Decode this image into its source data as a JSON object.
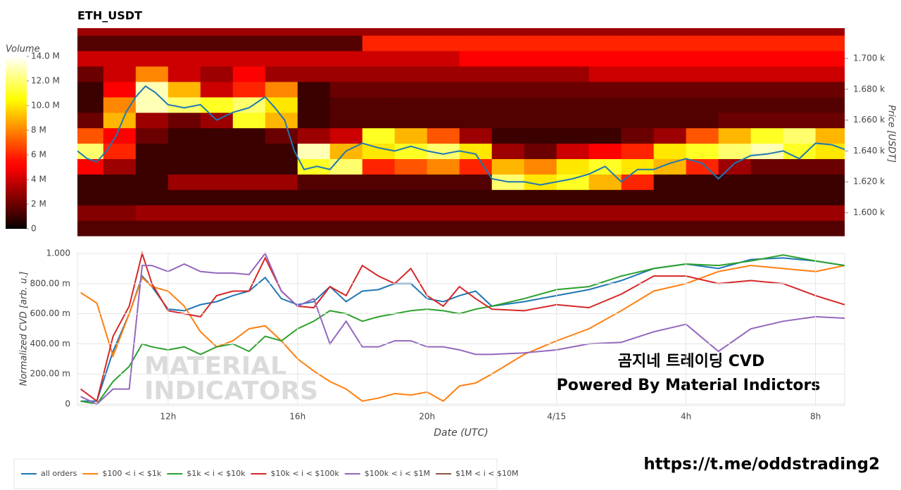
{
  "chart_data": [
    {
      "type": "heatmap",
      "title": "ETH_USDT",
      "colorbar_label": "Volume",
      "ylabel": "Price [USDT]",
      "xlim": [
        9.2,
        32.9
      ],
      "ylim": [
        1583.6,
        1719.6
      ],
      "yticks": [
        {
          "value": 1600,
          "label": "1.600 k"
        },
        {
          "value": 1620,
          "label": "1.620 k"
        },
        {
          "value": 1640,
          "label": "1.640 k"
        },
        {
          "value": 1660,
          "label": "1.660 k"
        },
        {
          "value": 1680,
          "label": "1.680 k"
        },
        {
          "value": 1700,
          "label": "1.700 k"
        }
      ],
      "zlim": [
        0,
        14000000
      ],
      "zticks": [
        0,
        {
          "value": 2000000,
          "label": "2 M"
        },
        {
          "value": 4000000,
          "label": "4 M"
        },
        {
          "value": 6000000,
          "label": "6 M"
        },
        {
          "value": 8000000,
          "label": "8 M"
        },
        {
          "value": 10000000,
          "label": "10.0 M"
        },
        {
          "value": 12000000,
          "label": "12.0 M"
        },
        {
          "value": 14000000,
          "label": "14.0 M"
        }
      ],
      "time_bins": [
        9,
        10,
        11,
        12,
        13,
        14,
        15,
        16,
        17,
        18,
        19,
        20,
        21,
        22,
        23,
        24,
        25,
        26,
        27,
        28,
        29,
        30,
        31,
        32,
        33
      ],
      "price_bins": [
        1585,
        1595,
        1605,
        1615,
        1625,
        1635,
        1645,
        1655,
        1665,
        1675,
        1685,
        1695,
        1705,
        1715,
        1725
      ],
      "z": [
        [
          1500000,
          1500000,
          1500000,
          1500000,
          1500000,
          1500000,
          1500000,
          1500000,
          1500000,
          1500000,
          1500000,
          1500000,
          1500000,
          1500000,
          1500000,
          1500000,
          1500000,
          1500000,
          1500000,
          1500000,
          1500000,
          1500000,
          1500000,
          1500000
        ],
        [
          2500000,
          2500000,
          3000000,
          3000000,
          3000000,
          3000000,
          3000000,
          3000000,
          3000000,
          3000000,
          3000000,
          3000000,
          3000000,
          3000000,
          3000000,
          3000000,
          3000000,
          3000000,
          3000000,
          3000000,
          3000000,
          3000000,
          3000000,
          3000000
        ],
        [
          1000000,
          1000000,
          1000000,
          1000000,
          1000000,
          1000000,
          1000000,
          1000000,
          1000000,
          1000000,
          1000000,
          1000000,
          1000000,
          1000000,
          1000000,
          1000000,
          1000000,
          1000000,
          1000000,
          1000000,
          1000000,
          1000000,
          1000000,
          1000000
        ],
        [
          1000000,
          1000000,
          1000000,
          3000000,
          3000000,
          3000000,
          3000000,
          1500000,
          1500000,
          1500000,
          1500000,
          1500000,
          1500000,
          12000000,
          10000000,
          11000000,
          9000000,
          6000000,
          1000000,
          1000000,
          1000000,
          1000000,
          1000000,
          1000000
        ],
        [
          5000000,
          3000000,
          1000000,
          1000000,
          1000000,
          1000000,
          1000000,
          11000000,
          12000000,
          6000000,
          7000000,
          8000000,
          6000000,
          9000000,
          8000000,
          10000000,
          11000000,
          10000000,
          9000000,
          6000000,
          3000000,
          2000000,
          2000000,
          2000000
        ],
        [
          12000000,
          6000000,
          1000000,
          1000000,
          1000000,
          1000000,
          1000000,
          13000000,
          9000000,
          10000000,
          11000000,
          12000000,
          10000000,
          3000000,
          2000000,
          4000000,
          5000000,
          6000000,
          10000000,
          11000000,
          12000000,
          13000000,
          11000000,
          10000000
        ],
        [
          7000000,
          5000000,
          2000000,
          1000000,
          1000000,
          1000000,
          2000000,
          3000000,
          4000000,
          11000000,
          9000000,
          7000000,
          3000000,
          1000000,
          1000000,
          1000000,
          1000000,
          2000000,
          3000000,
          7000000,
          9000000,
          11000000,
          12000000,
          9000000
        ],
        [
          2000000,
          9000000,
          3000000,
          2000000,
          3000000,
          11000000,
          9000000,
          1000000,
          1500000,
          1500000,
          1500000,
          1500000,
          1500000,
          1500000,
          1500000,
          1500000,
          1500000,
          1500000,
          1500000,
          1500000,
          2000000,
          2000000,
          2000000,
          2000000
        ],
        [
          1000000,
          8000000,
          13000000,
          12000000,
          11000000,
          12000000,
          10000000,
          1000000,
          1500000,
          1500000,
          1500000,
          1500000,
          1500000,
          1500000,
          1500000,
          1500000,
          1500000,
          1500000,
          1500000,
          1500000,
          1500000,
          1500000,
          1500000,
          1500000
        ],
        [
          1000000,
          5000000,
          13000000,
          9000000,
          4000000,
          6000000,
          8000000,
          1000000,
          2000000,
          2000000,
          2000000,
          2000000,
          2000000,
          2000000,
          2000000,
          2000000,
          2000000,
          2000000,
          2000000,
          2000000,
          2000000,
          2000000,
          2000000,
          2000000
        ],
        [
          2000000,
          4000000,
          8000000,
          4000000,
          3000000,
          5000000,
          3000000,
          3000000,
          3000000,
          3000000,
          3000000,
          3000000,
          3000000,
          3000000,
          3000000,
          3000000,
          4000000,
          4000000,
          4000000,
          4000000,
          4000000,
          4000000,
          4000000,
          4000000
        ],
        [
          4000000,
          4000000,
          4000000,
          4000000,
          4000000,
          4000000,
          4000000,
          4000000,
          4000000,
          4000000,
          4000000,
          4000000,
          5000000,
          5000000,
          5000000,
          5000000,
          5000000,
          5000000,
          5000000,
          5000000,
          5000000,
          5000000,
          5000000,
          5000000
        ],
        [
          1500000,
          1500000,
          1500000,
          1500000,
          1500000,
          1500000,
          1500000,
          1500000,
          1500000,
          6000000,
          6000000,
          6000000,
          6000000,
          6000000,
          6000000,
          6000000,
          6000000,
          6000000,
          6000000,
          6000000,
          6000000,
          6000000,
          6000000,
          6000000
        ],
        [
          3000000,
          3000000,
          3000000,
          3000000,
          3000000,
          3000000,
          3000000,
          3000000,
          3000000,
          3000000,
          3000000,
          3000000,
          3000000,
          3000000,
          3000000,
          3000000,
          3000000,
          3000000,
          3000000,
          3000000,
          3000000,
          3000000,
          3000000,
          3000000
        ]
      ],
      "line": {
        "color": "#1f77b4",
        "x": [
          9.2,
          9.5,
          9.8,
          10.1,
          10.4,
          10.7,
          11,
          11.3,
          11.6,
          12,
          12.5,
          13,
          13.5,
          14,
          14.5,
          15,
          15.3,
          15.6,
          15.9,
          16.2,
          16.6,
          17,
          17.5,
          18,
          18.5,
          19,
          19.5,
          20,
          20.5,
          21,
          21.5,
          22,
          22.5,
          23,
          23.5,
          24,
          24.5,
          25,
          25.5,
          26,
          26.5,
          27,
          27.5,
          28,
          28.5,
          29,
          29.5,
          30,
          30.5,
          31,
          31.5,
          32,
          32.5,
          32.9
        ],
        "values": [
          1640,
          1635,
          1633,
          1640,
          1650,
          1665,
          1675,
          1682,
          1678,
          1670,
          1668,
          1670,
          1660,
          1665,
          1668,
          1675,
          1668,
          1660,
          1640,
          1628,
          1630,
          1628,
          1640,
          1645,
          1642,
          1640,
          1643,
          1640,
          1638,
          1640,
          1638,
          1622,
          1620,
          1620,
          1618,
          1620,
          1622,
          1625,
          1630,
          1620,
          1628,
          1628,
          1632,
          1635,
          1632,
          1622,
          1632,
          1637,
          1638,
          1640,
          1635,
          1645,
          1644,
          1641
        ]
      }
    },
    {
      "type": "line",
      "ylabel": "Normalized CVD [arb. u.]",
      "xlabel": "Date (UTC)",
      "grid": true,
      "xlim": [
        9.2,
        32.9
      ],
      "ylim": [
        0,
        1
      ],
      "xticks": [
        {
          "value": 12,
          "label": "12h"
        },
        {
          "value": 16,
          "label": "16h"
        },
        {
          "value": 20,
          "label": "20h"
        },
        {
          "value": 24,
          "label": "4/15"
        },
        {
          "value": 28,
          "label": "4h"
        },
        {
          "value": 32,
          "label": "8h"
        }
      ],
      "yticks": [
        0,
        {
          "value": 0.2,
          "label": "200.00 m"
        },
        {
          "value": 0.4,
          "label": "400.00 m"
        },
        {
          "value": 0.6,
          "label": "600.00 m"
        },
        {
          "value": 0.8,
          "label": "800.00 m"
        },
        {
          "value": 1,
          "label": "1.000"
        }
      ],
      "x": [
        9.3,
        9.8,
        10.3,
        10.8,
        11.2,
        11.5,
        12,
        12.5,
        13,
        13.5,
        14,
        14.5,
        15,
        15.5,
        16,
        16.5,
        17,
        17.5,
        18,
        18.5,
        19,
        19.5,
        20,
        20.5,
        21,
        21.5,
        22,
        23,
        24,
        25,
        26,
        27,
        28,
        29,
        30,
        31,
        32,
        32.9
      ],
      "series": [
        {
          "name": "all orders",
          "color": "#1f77b4",
          "values": [
            0.02,
            0.02,
            0.35,
            0.6,
            0.85,
            0.78,
            0.63,
            0.62,
            0.66,
            0.68,
            0.72,
            0.75,
            0.84,
            0.7,
            0.66,
            0.68,
            0.78,
            0.68,
            0.75,
            0.76,
            0.8,
            0.8,
            0.7,
            0.68,
            0.72,
            0.75,
            0.65,
            0.68,
            0.72,
            0.76,
            0.82,
            0.9,
            0.93,
            0.9,
            0.96,
            0.97,
            0.95,
            0.92
          ]
        },
        {
          "name": "$100 < i < $1k",
          "color": "#ff7f0e",
          "values": [
            0.74,
            0.67,
            0.32,
            0.6,
            0.84,
            0.78,
            0.75,
            0.65,
            0.48,
            0.38,
            0.42,
            0.5,
            0.52,
            0.42,
            0.3,
            0.22,
            0.15,
            0.1,
            0.02,
            0.04,
            0.07,
            0.06,
            0.08,
            0.02,
            0.12,
            0.14,
            0.2,
            0.33,
            0.42,
            0.5,
            0.62,
            0.75,
            0.8,
            0.88,
            0.92,
            0.9,
            0.88,
            0.92
          ]
        },
        {
          "name": "$1k < i < $10k",
          "color": "#2ca02c",
          "values": [
            0.02,
            0,
            0.15,
            0.25,
            0.4,
            0.38,
            0.36,
            0.38,
            0.33,
            0.38,
            0.4,
            0.35,
            0.45,
            0.42,
            0.5,
            0.55,
            0.62,
            0.6,
            0.55,
            0.58,
            0.6,
            0.62,
            0.63,
            0.62,
            0.6,
            0.63,
            0.65,
            0.7,
            0.76,
            0.78,
            0.85,
            0.9,
            0.93,
            0.92,
            0.95,
            0.99,
            0.95,
            0.92
          ]
        },
        {
          "name": "$10k < i < $100k",
          "color": "#d62728",
          "values": [
            0.1,
            0.02,
            0.45,
            0.65,
            1,
            0.8,
            0.62,
            0.6,
            0.58,
            0.72,
            0.75,
            0.75,
            0.97,
            0.75,
            0.65,
            0.64,
            0.78,
            0.72,
            0.92,
            0.85,
            0.8,
            0.9,
            0.72,
            0.65,
            0.78,
            0.7,
            0.63,
            0.62,
            0.66,
            0.64,
            0.73,
            0.85,
            0.85,
            0.8,
            0.82,
            0.8,
            0.72,
            0.66
          ]
        },
        {
          "name": "$100k < i < $1M",
          "color": "#9467bd",
          "values": [
            0.05,
            0,
            0.1,
            0.1,
            0.92,
            0.92,
            0.88,
            0.93,
            0.88,
            0.87,
            0.87,
            0.86,
            1,
            0.75,
            0.65,
            0.7,
            0.4,
            0.55,
            0.38,
            0.38,
            0.42,
            0.42,
            0.38,
            0.38,
            0.36,
            0.33,
            0.33,
            0.34,
            0.36,
            0.4,
            0.41,
            0.48,
            0.53,
            0.35,
            0.5,
            0.55,
            0.58,
            0.57
          ]
        },
        {
          "name": "$1M < i < $10M",
          "color": "#8c564b",
          "values": [
            null,
            null,
            null,
            null,
            null,
            null,
            null,
            null,
            null,
            null,
            null,
            null,
            null,
            null,
            null,
            null,
            null,
            null,
            null,
            null,
            null,
            null,
            null,
            null,
            null,
            null,
            null,
            null,
            null,
            null,
            null,
            null,
            null,
            null,
            null,
            null,
            null,
            null
          ]
        }
      ],
      "watermark": [
        "MATERIAL",
        "INDICATORS"
      ],
      "annotations": [
        "곰지네 트레이딩 CVD",
        "Powered By Material Indictors"
      ]
    }
  ],
  "footer": "https://t.me/oddstrading2"
}
